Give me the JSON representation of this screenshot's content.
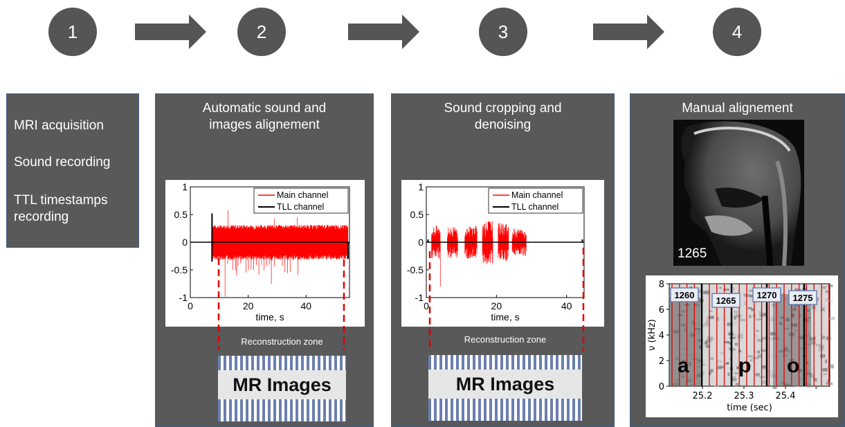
{
  "steps": [
    "1",
    "2",
    "3",
    "4"
  ],
  "panel1": {
    "items": [
      "MRI acquisition",
      "Sound recording",
      "TTL timestamps recording"
    ]
  },
  "panel2": {
    "title_line1": "Automatic sound and",
    "title_line2": "images alignement",
    "zone_label": "Reconstruction zone",
    "mr_label": "MR Images"
  },
  "panel3": {
    "title_line1": "Sound cropping and",
    "title_line2": "denoising",
    "zone_label": "Reconstruction zone",
    "mr_label": "MR Images"
  },
  "panel4": {
    "title": "Manual alignement",
    "frame_number": "1265"
  },
  "colors": {
    "panel_bg": "#595959",
    "step_circle": "#555555",
    "main_channel": "#ff0000",
    "tll_channel": "#000000",
    "stripe": "#6b7fae"
  },
  "chart_data": [
    {
      "type": "line",
      "xlabel": "time, s",
      "ylabel": "",
      "xlim": [
        0,
        55
      ],
      "ylim": [
        -1,
        1
      ],
      "xticks": [
        "0",
        "20",
        "40"
      ],
      "yticks": [
        "1",
        "0.5",
        "0",
        "-0.5",
        "-1"
      ],
      "legend": [
        "Main channel",
        "TLL channel"
      ],
      "legend_position": "top-right",
      "series": [
        {
          "name": "Main channel",
          "description_envelope": {
            "x_start": 7.5,
            "x_end": 54.5,
            "upper": 0.3,
            "lower": -0.3,
            "peaks_up": [
              [
                13,
                0.58
              ],
              [
                29,
                0.42
              ],
              [
                37,
                0.45
              ]
            ],
            "peaks_down": [
              [
                12,
                -0.98
              ],
              [
                28,
                -0.75
              ],
              [
                16,
                -0.6
              ]
            ]
          }
        },
        {
          "name": "TLL channel",
          "spikes": [
            [
              7.5,
              0.52
            ],
            [
              7.5,
              -0.35
            ],
            [
              54.5,
              -0.3
            ]
          ]
        }
      ]
    },
    {
      "type": "line",
      "xlabel": "time, s",
      "ylabel": "",
      "xlim": [
        0,
        45
      ],
      "ylim": [
        -1,
        1
      ],
      "xticks": [
        "0",
        "20",
        "40"
      ],
      "yticks": [
        "1",
        "0.5",
        "0",
        "-0.5",
        "-1"
      ],
      "legend": [
        "Main channel",
        "TLL channel"
      ],
      "legend_position": "top-right",
      "series": [
        {
          "name": "Main channel",
          "bursts": [
            [
              1.5,
              4.0,
              0.3
            ],
            [
              6.0,
              9.0,
              0.28
            ],
            [
              11.0,
              14.5,
              0.3
            ],
            [
              16.0,
              19.0,
              0.4
            ],
            [
              20.5,
              23.5,
              0.35
            ],
            [
              24.5,
              28.5,
              0.25
            ]
          ]
        },
        {
          "name": "TLL channel",
          "spikes": [
            [
              0.5,
              0.05
            ],
            [
              44.5,
              0.05
            ]
          ]
        }
      ]
    },
    {
      "type": "heatmap",
      "xlabel": "time (sec)",
      "ylabel": "ν (kHz)",
      "xticks": [
        "25.2",
        "25.3",
        "25.4"
      ],
      "yticks": [
        "8",
        "6",
        "4",
        "2",
        "0"
      ],
      "phonemes": [
        "a",
        "p",
        "o"
      ],
      "frame_labels": [
        "1260",
        "1265",
        "1270",
        "1275"
      ]
    }
  ]
}
